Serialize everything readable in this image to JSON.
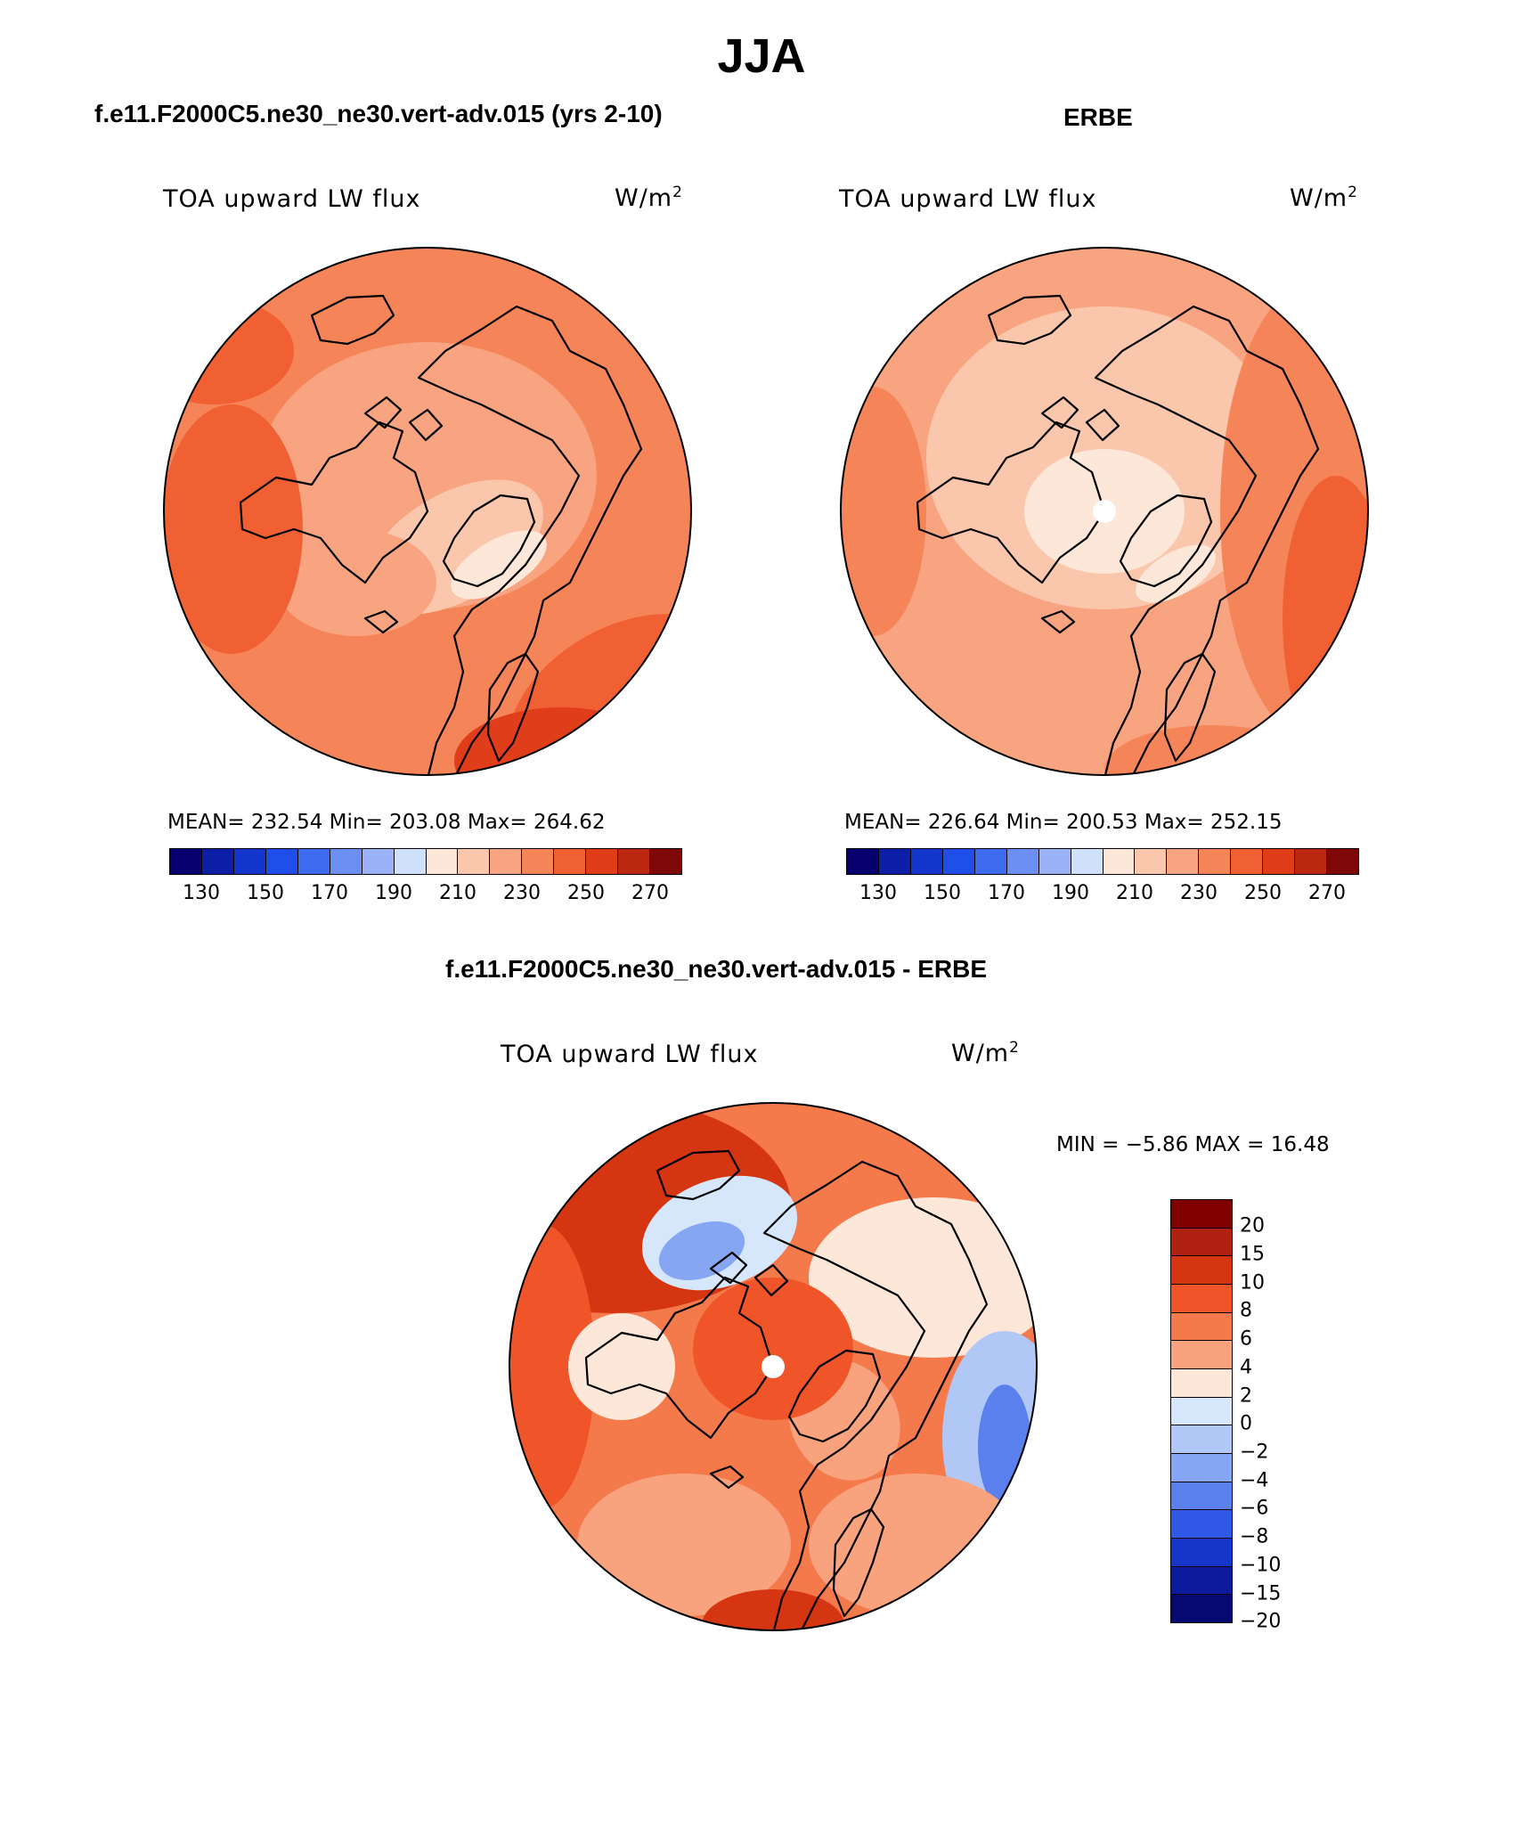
{
  "page": {
    "main_title": "JJA",
    "diff_title": "f.e11.F2000C5.ne30_ne30.vert-adv.015 - ERBE"
  },
  "panels": [
    {
      "title": "f.e11.F2000C5.ne30_ne30.vert-adv.015 (yrs 2-10)",
      "variable": "TOA upward LW flux",
      "units": "W/m",
      "units_exp": "2",
      "stats": "MEAN= 232.54   Min= 203.08   Max= 264.62",
      "mean": 232.54,
      "min": 203.08,
      "max": 264.62,
      "base_color": "#f26c3f",
      "has_pole_hole": false
    },
    {
      "title": "ERBE",
      "variable": "TOA upward LW flux",
      "units": "W/m",
      "units_exp": "2",
      "stats": "MEAN= 226.64   Min= 200.53   Max= 252.15",
      "mean": 226.64,
      "min": 200.53,
      "max": 252.15,
      "base_color": "#f6906a",
      "has_pole_hole": true
    }
  ],
  "abs_colorbar": {
    "colors": [
      "#08006e",
      "#0d1fa6",
      "#1435cc",
      "#1f4fe8",
      "#3e6cf0",
      "#6c8ff4",
      "#9bb3f6",
      "#cfe0fa",
      "#fde7d8",
      "#fbc7ac",
      "#f8a480",
      "#f58558",
      "#f06033",
      "#e03e1a",
      "#bb2710",
      "#7e0707"
    ],
    "tick_labels": [
      "130",
      "150",
      "170",
      "190",
      "210",
      "230",
      "250",
      "270"
    ]
  },
  "diff": {
    "variable": "TOA upward LW flux",
    "units": "W/m",
    "units_exp": "2",
    "minmax": "MIN =   −5.86 MAX =   16.48",
    "min": -5.86,
    "max": 16.48,
    "base_color": "#f6906a",
    "has_pole_hole": true
  },
  "diff_colorbar": {
    "colors_top_to_bottom": [
      "#800000",
      "#b02010",
      "#d63512",
      "#f0552a",
      "#f47a4c",
      "#f8a37e",
      "#fde7d8",
      "#d6e6fb",
      "#b1c8f6",
      "#86a5f2",
      "#5a80ee",
      "#2f59e6",
      "#1536c9",
      "#0c1b9e",
      "#060a70"
    ],
    "tick_labels": [
      "20",
      "15",
      "10",
      "8",
      "6",
      "4",
      "2",
      "0",
      "−2",
      "−4",
      "−6",
      "−8",
      "−10",
      "−15",
      "−20"
    ]
  }
}
